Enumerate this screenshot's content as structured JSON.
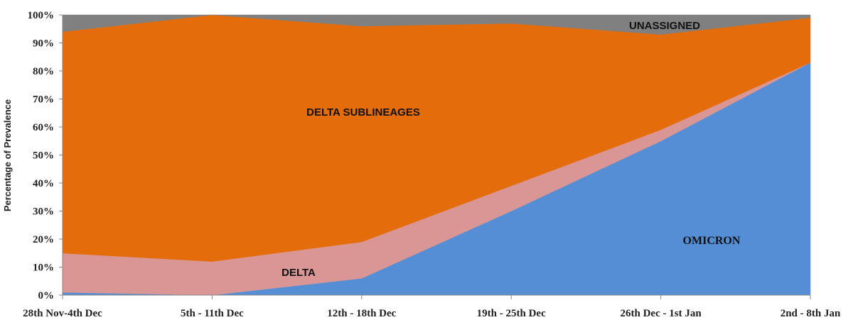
{
  "chart_data": {
    "type": "area",
    "stacked": true,
    "percent": true,
    "categories": [
      "28th Nov-4th Dec",
      "5th - 11th Dec",
      "12th - 18th Dec",
      "19th - 25th Dec",
      "26th Dec - 1st Jan",
      "2nd - 8th Jan"
    ],
    "ylabel": "Percentage of Prevalence",
    "ylim": [
      0,
      100
    ],
    "yticks": [
      "0%",
      "10%",
      "20%",
      "30%",
      "40%",
      "50%",
      "60%",
      "70%",
      "80%",
      "90%",
      "100%"
    ],
    "grid": false,
    "series": [
      {
        "name": "OMICRON",
        "color": "#558ed5",
        "values": [
          1,
          0,
          6,
          30,
          55,
          83
        ]
      },
      {
        "name": "DELTA",
        "color": "#d99694",
        "values": [
          14,
          12,
          13,
          9,
          4,
          0
        ]
      },
      {
        "name": "DELTA SUBLINEAGES",
        "color": "#e46c0a",
        "values": [
          79,
          88,
          77,
          58,
          34,
          16
        ]
      },
      {
        "name": "UNASSIGNED",
        "color": "#808080",
        "values": [
          6,
          0,
          4,
          3,
          7,
          1
        ]
      }
    ]
  }
}
